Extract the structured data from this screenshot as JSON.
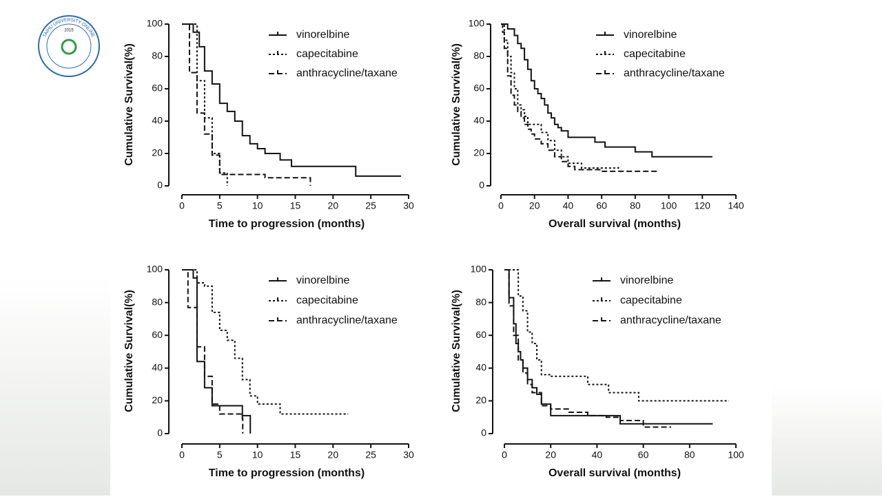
{
  "logo": {
    "name": "TAIHU UNIVERSITY ONLINE",
    "year": "2015"
  },
  "chart_data": [
    {
      "type": "step",
      "xlabel": "Time to progression (months)",
      "ylabel": "Cumulative Survival(%)",
      "xlim": [
        0,
        30
      ],
      "xticks": [
        0,
        5,
        10,
        15,
        20,
        25,
        30
      ],
      "ylim": [
        0,
        100
      ],
      "yticks": [
        0,
        20,
        40,
        60,
        80,
        100
      ],
      "series": [
        {
          "name": "vinorelbine",
          "color": "#111111",
          "dash": "solid",
          "x": [
            0,
            1.5,
            2.3,
            3,
            4,
            5,
            6,
            7,
            8,
            9,
            10,
            11,
            13,
            14.5,
            23,
            29
          ],
          "values": [
            100,
            95,
            86,
            71,
            63,
            51,
            46,
            40,
            31,
            26,
            23,
            20,
            16,
            12,
            6,
            6
          ]
        },
        {
          "name": "capecitabine",
          "color": "#111111",
          "dash": "dotted",
          "x": [
            0,
            2,
            3,
            4,
            5,
            6
          ],
          "values": [
            100,
            65,
            42,
            20,
            8,
            0
          ]
        },
        {
          "name": "anthracycline/taxane",
          "color": "#111111",
          "dash": "dashed",
          "x": [
            0,
            1,
            2,
            3,
            4,
            5,
            11,
            17
          ],
          "values": [
            100,
            70,
            45,
            32,
            19,
            7,
            5,
            0
          ]
        }
      ]
    },
    {
      "type": "step",
      "xlabel": "Overall survival (months)",
      "ylabel": "Cumulative Survival(%)",
      "xlim": [
        0,
        140
      ],
      "xticks": [
        0,
        20,
        40,
        60,
        80,
        100,
        120,
        140
      ],
      "ylim": [
        0,
        100
      ],
      "yticks": [
        0,
        20,
        40,
        60,
        80,
        100
      ],
      "series": [
        {
          "name": "vinorelbine",
          "color": "#111111",
          "dash": "solid",
          "x": [
            0,
            4,
            8,
            10,
            12,
            14,
            16,
            18,
            20,
            22,
            24,
            26,
            28,
            30,
            32,
            34,
            36,
            40,
            48,
            56,
            62,
            72,
            80,
            90,
            126
          ],
          "values": [
            100,
            97,
            93,
            88,
            85,
            78,
            72,
            65,
            60,
            57,
            54,
            50,
            45,
            42,
            38,
            36,
            34,
            30,
            30,
            27,
            24,
            24,
            21,
            18,
            18
          ]
        },
        {
          "name": "capecitabine",
          "color": "#111111",
          "dash": "dotted",
          "x": [
            0,
            2,
            4,
            6,
            8,
            10,
            12,
            14,
            16,
            20,
            24,
            28,
            32,
            36,
            40,
            48,
            60,
            70
          ],
          "values": [
            100,
            90,
            80,
            70,
            60,
            50,
            47,
            43,
            38,
            38,
            33,
            28,
            22,
            18,
            14,
            11,
            11,
            12
          ]
        },
        {
          "name": "anthracycline/taxane",
          "color": "#111111",
          "dash": "dashed",
          "x": [
            0,
            1,
            2,
            4,
            6,
            8,
            10,
            12,
            14,
            16,
            18,
            20,
            24,
            28,
            32,
            36,
            40,
            44,
            48,
            60,
            94
          ],
          "values": [
            100,
            95,
            85,
            68,
            56,
            50,
            46,
            42,
            38,
            35,
            32,
            29,
            26,
            22,
            18,
            15,
            12,
            10,
            10,
            9,
            9
          ]
        }
      ]
    },
    {
      "type": "step",
      "xlabel": "Time to progression (months)",
      "ylabel": "Cumulative Survival(%)",
      "xlim": [
        0,
        30
      ],
      "xticks": [
        0,
        5,
        10,
        15,
        20,
        25,
        30
      ],
      "ylim": [
        0,
        100
      ],
      "yticks": [
        0,
        20,
        40,
        60,
        80,
        100
      ],
      "series": [
        {
          "name": "vinorelbine",
          "color": "#111111",
          "dash": "solid",
          "x": [
            0,
            1.5,
            2,
            3,
            4,
            7,
            8,
            9,
            9.05
          ],
          "values": [
            100,
            95,
            44,
            28,
            17,
            17,
            11,
            11,
            0
          ]
        },
        {
          "name": "capecitabine",
          "color": "#111111",
          "dash": "dotted",
          "x": [
            0,
            2,
            3,
            4,
            5,
            6,
            7,
            8,
            9,
            10,
            13,
            15,
            22
          ],
          "values": [
            100,
            92,
            90,
            74,
            63,
            57,
            46,
            33,
            23,
            18,
            12,
            12,
            12
          ]
        },
        {
          "name": "anthracycline/taxane",
          "color": "#111111",
          "dash": "dashed",
          "x": [
            0,
            0.8,
            2,
            3,
            4,
            5,
            7,
            8,
            8.05
          ],
          "values": [
            100,
            77,
            53,
            35,
            18,
            12,
            12,
            9,
            0
          ]
        }
      ]
    },
    {
      "type": "step",
      "xlabel": "Overall survival (months)",
      "ylabel": "Cumulative Survival(%)",
      "xlim": [
        0,
        100
      ],
      "xticks": [
        0,
        20,
        40,
        60,
        80,
        100
      ],
      "ylim": [
        0,
        100
      ],
      "yticks": [
        0,
        20,
        40,
        60,
        80,
        100
      ],
      "series": [
        {
          "name": "vinorelbine",
          "color": "#111111",
          "dash": "solid",
          "x": [
            0,
            2,
            4,
            5,
            6,
            7,
            8,
            10,
            12,
            14,
            16,
            20,
            25,
            30,
            50,
            90
          ],
          "values": [
            100,
            83,
            67,
            55,
            50,
            45,
            40,
            33,
            28,
            24,
            18,
            11,
            11,
            11,
            6,
            6
          ]
        },
        {
          "name": "capecitabine",
          "color": "#111111",
          "dash": "dotted",
          "x": [
            0,
            6,
            8,
            10,
            12,
            14,
            16,
            20,
            28,
            36,
            45,
            58,
            72,
            97
          ],
          "values": [
            100,
            84,
            75,
            62,
            55,
            45,
            36,
            35,
            35,
            30,
            25,
            20,
            20,
            20
          ]
        },
        {
          "name": "anthracycline/taxane",
          "color": "#111111",
          "dash": "dashed",
          "x": [
            0,
            2,
            4,
            6,
            8,
            10,
            12,
            16,
            20,
            28,
            36,
            44,
            50,
            60,
            72
          ],
          "values": [
            100,
            78,
            60,
            45,
            37,
            30,
            25,
            17,
            15,
            13,
            11,
            10,
            8,
            4,
            4
          ]
        }
      ]
    }
  ]
}
